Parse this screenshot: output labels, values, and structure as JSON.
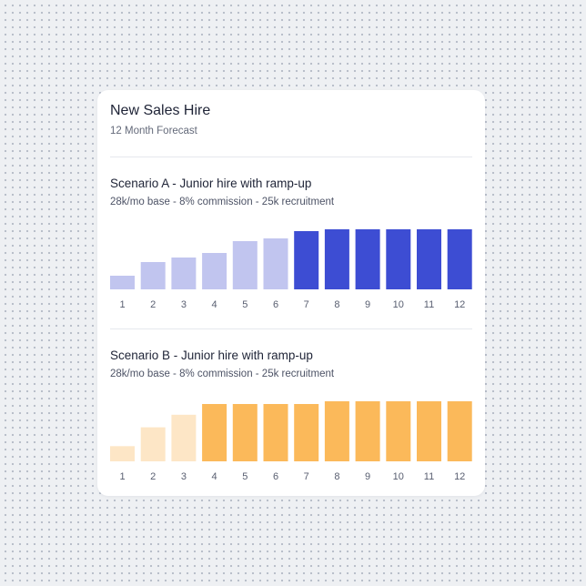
{
  "card": {
    "title": "New Sales Hire",
    "subtitle": "12 Month Forecast"
  },
  "scenarios": [
    {
      "title": "Scenario A - Junior hire with ramp-up",
      "details": "28k/mo base - 8% commission - 25k recruitment"
    },
    {
      "title": "Scenario B - Junior hire with ramp-up",
      "details": "28k/mo base - 8% commission - 25k recruitment"
    }
  ],
  "chart_data": [
    {
      "type": "bar",
      "categories": [
        "1",
        "2",
        "3",
        "4",
        "5",
        "6",
        "7",
        "8",
        "9",
        "10",
        "11",
        "12"
      ],
      "values": [
        15,
        30,
        35,
        40,
        53,
        56,
        64,
        66,
        66,
        66,
        66,
        66
      ],
      "highlight_from_index": 6,
      "colors": {
        "muted": "#c1c5ef",
        "strong": "#3d4dd3"
      },
      "ylim": [
        0,
        66
      ],
      "grid": false
    },
    {
      "type": "bar",
      "categories": [
        "1",
        "2",
        "3",
        "4",
        "5",
        "6",
        "7",
        "8",
        "9",
        "10",
        "11",
        "12"
      ],
      "values": [
        17,
        38,
        52,
        64,
        64,
        64,
        64,
        67,
        67,
        67,
        67,
        67
      ],
      "highlight_from_index": 3,
      "colors": {
        "muted": "#fde6c6",
        "strong": "#fbb95a"
      },
      "ylim": [
        0,
        67
      ],
      "grid": false
    }
  ]
}
